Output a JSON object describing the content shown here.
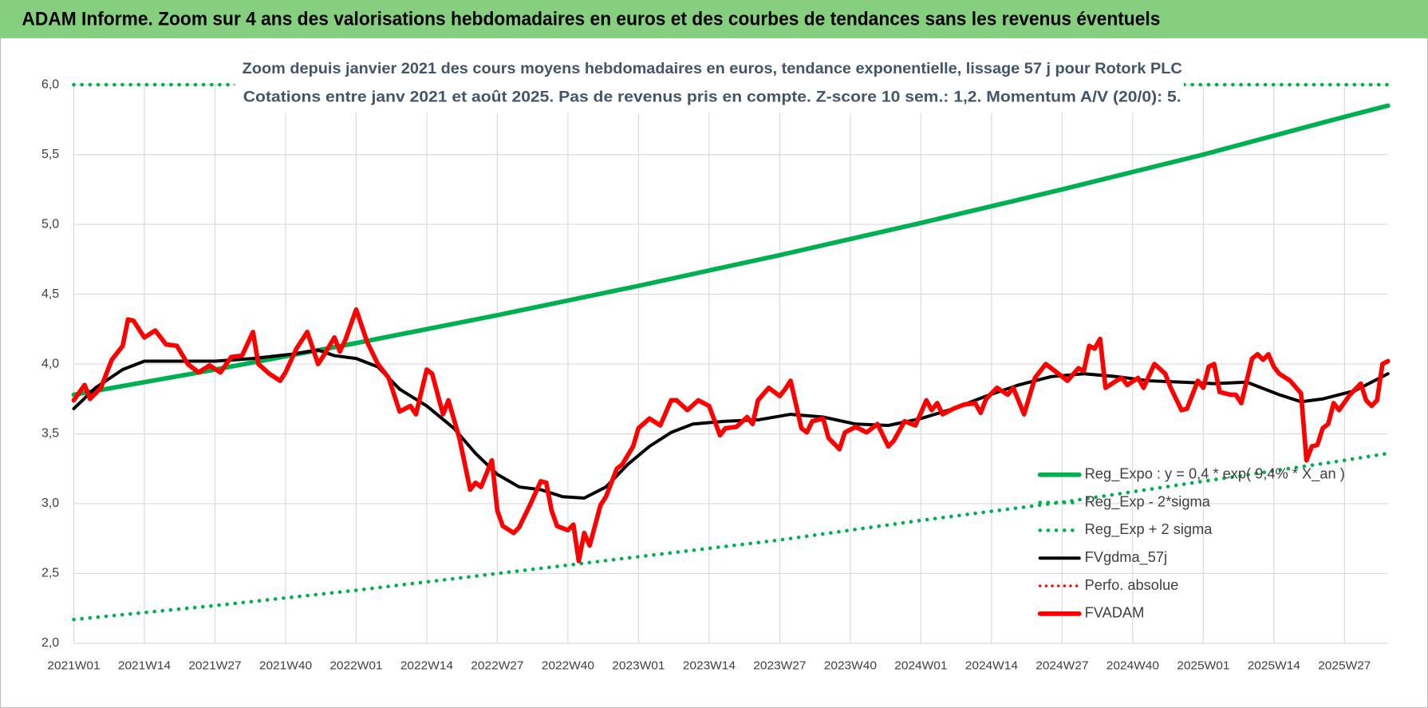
{
  "chart_data": {
    "type": "line",
    "title": "ADAM Informe. Zoom sur 4 ans des valorisations hebdomadaires en euros et des courbes de tendances sans les revenus éventuels",
    "subtitle": [
      "Zoom depuis janvier 2021 des cours moyens hebdomadaires en euros, tendance exponentielle, lissage 57 j pour Rotork PLC",
      "Cotations entre janv 2021 et août 2025. Pas de revenus pris en compte. Z-score 10 sem.: 1,2. Momentum A/V (20/0): 5."
    ],
    "xlim": [
      0,
      242
    ],
    "xticks": [
      {
        "value": 0,
        "label": "2021W01"
      },
      {
        "value": 13,
        "label": "2021W14"
      },
      {
        "value": 26,
        "label": "2021W27"
      },
      {
        "value": 39,
        "label": "2021W40"
      },
      {
        "value": 52,
        "label": "2022W01"
      },
      {
        "value": 65,
        "label": "2022W14"
      },
      {
        "value": 78,
        "label": "2022W27"
      },
      {
        "value": 91,
        "label": "2022W40"
      },
      {
        "value": 104,
        "label": "2023W01"
      },
      {
        "value": 117,
        "label": "2023W14"
      },
      {
        "value": 130,
        "label": "2023W27"
      },
      {
        "value": 143,
        "label": "2023W40"
      },
      {
        "value": 156,
        "label": "2024W01"
      },
      {
        "value": 169,
        "label": "2024W14"
      },
      {
        "value": 182,
        "label": "2024W27"
      },
      {
        "value": 195,
        "label": "2024W40"
      },
      {
        "value": 208,
        "label": "2025W01"
      },
      {
        "value": 221,
        "label": "2025W14"
      },
      {
        "value": 234,
        "label": "2025W27"
      }
    ],
    "ylim": [
      2,
      6
    ],
    "yticks": [
      {
        "value": 2,
        "label": "2,0"
      },
      {
        "value": 2.5,
        "label": "2,5"
      },
      {
        "value": 3,
        "label": "3,0"
      },
      {
        "value": 3.5,
        "label": "3,5"
      },
      {
        "value": 4,
        "label": "4,0"
      },
      {
        "value": 4.5,
        "label": "4,5"
      },
      {
        "value": 5,
        "label": "5,0"
      },
      {
        "value": 5.5,
        "label": "5,5"
      },
      {
        "value": 6,
        "label": "6,0"
      }
    ],
    "grid": true,
    "legend": "lower right",
    "series": [
      {
        "name": "Reg_Expo : y = 0,4 * exp( 9,4% * X_an )",
        "color": "#00b050",
        "style": "solid",
        "width": 5,
        "x": [
          0,
          26,
          52,
          78,
          104,
          130,
          156,
          182,
          208,
          234,
          242
        ],
        "values": [
          3.78,
          3.96,
          4.15,
          4.35,
          4.56,
          4.78,
          5.01,
          5.25,
          5.5,
          5.77,
          5.85
        ]
      },
      {
        "name": "Reg_Exp - 2*sigma",
        "color": "#00b050",
        "style": "dotted",
        "width": 4,
        "x": [
          0,
          26,
          52,
          78,
          104,
          130,
          156,
          182,
          208,
          234,
          242
        ],
        "values": [
          2.17,
          2.27,
          2.38,
          2.5,
          2.62,
          2.74,
          2.88,
          3.01,
          3.16,
          3.31,
          3.36
        ]
      },
      {
        "name": "Reg_Exp + 2 sigma",
        "color": "#00b050",
        "style": "dotted",
        "width": 4,
        "x": [
          0,
          242
        ],
        "values": [
          6,
          6
        ]
      },
      {
        "name": "FVgdma_57j",
        "color": "#000000",
        "style": "solid",
        "width": 3.5,
        "x": [
          0,
          4,
          9,
          13,
          19,
          26,
          33,
          40,
          45,
          48,
          52,
          56,
          60,
          65,
          70,
          74,
          78,
          82,
          86,
          90,
          94,
          98,
          102,
          106,
          110,
          114,
          120,
          126,
          132,
          138,
          144,
          150,
          156,
          162,
          168,
          174,
          180,
          186,
          192,
          198,
          204,
          210,
          216,
          222,
          226,
          230,
          236,
          242
        ],
        "values": [
          3.68,
          3.83,
          3.96,
          4.02,
          4.02,
          4.02,
          4.04,
          4.07,
          4.1,
          4.06,
          4.04,
          3.98,
          3.82,
          3.7,
          3.54,
          3.36,
          3.21,
          3.12,
          3.1,
          3.05,
          3.04,
          3.12,
          3.28,
          3.41,
          3.51,
          3.57,
          3.59,
          3.6,
          3.64,
          3.62,
          3.57,
          3.56,
          3.61,
          3.68,
          3.77,
          3.85,
          3.91,
          3.93,
          3.91,
          3.88,
          3.87,
          3.86,
          3.87,
          3.78,
          3.73,
          3.75,
          3.81,
          3.93
        ]
      },
      {
        "name": "Perfo. absolue",
        "color": "#ff0000",
        "style": "dotted",
        "width": 3,
        "x": [],
        "values": []
      },
      {
        "name": "FVADAM",
        "color": "#ff0000",
        "style": "solid",
        "width": 5,
        "x": [
          0,
          2,
          3,
          5,
          7,
          9,
          10,
          11,
          13,
          15,
          17,
          19,
          21,
          23,
          25,
          27,
          29,
          31,
          33,
          34,
          36,
          38,
          39,
          41,
          43,
          45,
          46,
          48,
          49,
          50,
          52,
          54,
          56,
          58,
          60,
          62,
          63,
          65,
          66,
          68,
          69,
          71,
          73,
          74,
          75,
          77,
          78,
          79,
          81,
          82,
          84,
          86,
          87,
          88,
          89,
          91,
          92,
          93,
          94,
          95,
          97,
          98,
          100,
          101,
          103,
          104,
          106,
          108,
          110,
          111,
          113,
          115,
          117,
          119,
          120,
          122,
          124,
          125,
          126,
          128,
          130,
          131,
          132,
          134,
          135,
          136,
          138,
          139,
          141,
          142,
          144,
          146,
          148,
          150,
          151,
          153,
          155,
          157,
          158,
          159,
          160,
          162,
          164,
          166,
          167,
          168,
          170,
          172,
          173,
          175,
          177,
          179,
          181,
          183,
          185,
          186,
          187,
          188,
          189,
          190,
          192,
          193,
          194,
          196,
          197,
          199,
          201,
          202,
          204,
          205,
          207,
          208,
          209,
          210,
          211,
          213,
          214,
          215,
          217,
          218,
          219,
          220,
          221,
          222,
          224,
          226,
          227,
          228,
          229,
          230,
          231,
          232,
          233,
          235,
          237,
          238,
          239,
          240,
          241,
          242
        ],
        "values": [
          3.74,
          3.85,
          3.75,
          3.83,
          4.03,
          4.13,
          4.32,
          4.31,
          4.19,
          4.24,
          4.14,
          4.13,
          4.0,
          3.94,
          3.99,
          3.94,
          4.05,
          4.06,
          4.23,
          4.0,
          3.93,
          3.88,
          3.94,
          4.11,
          4.23,
          4.0,
          4.06,
          4.19,
          4.09,
          4.17,
          4.39,
          4.16,
          4.0,
          3.9,
          3.66,
          3.7,
          3.64,
          3.96,
          3.93,
          3.64,
          3.74,
          3.47,
          3.1,
          3.15,
          3.12,
          3.31,
          2.95,
          2.84,
          2.79,
          2.83,
          2.99,
          3.16,
          3.15,
          2.95,
          2.84,
          2.81,
          2.85,
          2.59,
          2.79,
          2.7,
          2.99,
          3.05,
          3.25,
          3.28,
          3.41,
          3.54,
          3.61,
          3.56,
          3.74,
          3.74,
          3.67,
          3.74,
          3.7,
          3.49,
          3.54,
          3.55,
          3.62,
          3.57,
          3.74,
          3.83,
          3.77,
          3.82,
          3.88,
          3.54,
          3.51,
          3.59,
          3.61,
          3.47,
          3.39,
          3.51,
          3.55,
          3.51,
          3.57,
          3.41,
          3.45,
          3.59,
          3.56,
          3.74,
          3.67,
          3.72,
          3.64,
          3.68,
          3.71,
          3.72,
          3.65,
          3.75,
          3.83,
          3.78,
          3.83,
          3.64,
          3.9,
          4.0,
          3.94,
          3.88,
          3.97,
          3.95,
          4.13,
          4.11,
          4.18,
          3.83,
          3.88,
          3.9,
          3.85,
          3.9,
          3.83,
          4.0,
          3.93,
          3.83,
          3.67,
          3.68,
          3.88,
          3.83,
          3.98,
          4.0,
          3.8,
          3.78,
          3.78,
          3.72,
          4.04,
          4.07,
          4.03,
          4.07,
          3.98,
          3.93,
          3.88,
          3.79,
          3.31,
          3.41,
          3.42,
          3.54,
          3.57,
          3.72,
          3.67,
          3.78,
          3.86,
          3.74,
          3.7,
          3.74,
          4.0,
          4.02
        ]
      }
    ]
  }
}
